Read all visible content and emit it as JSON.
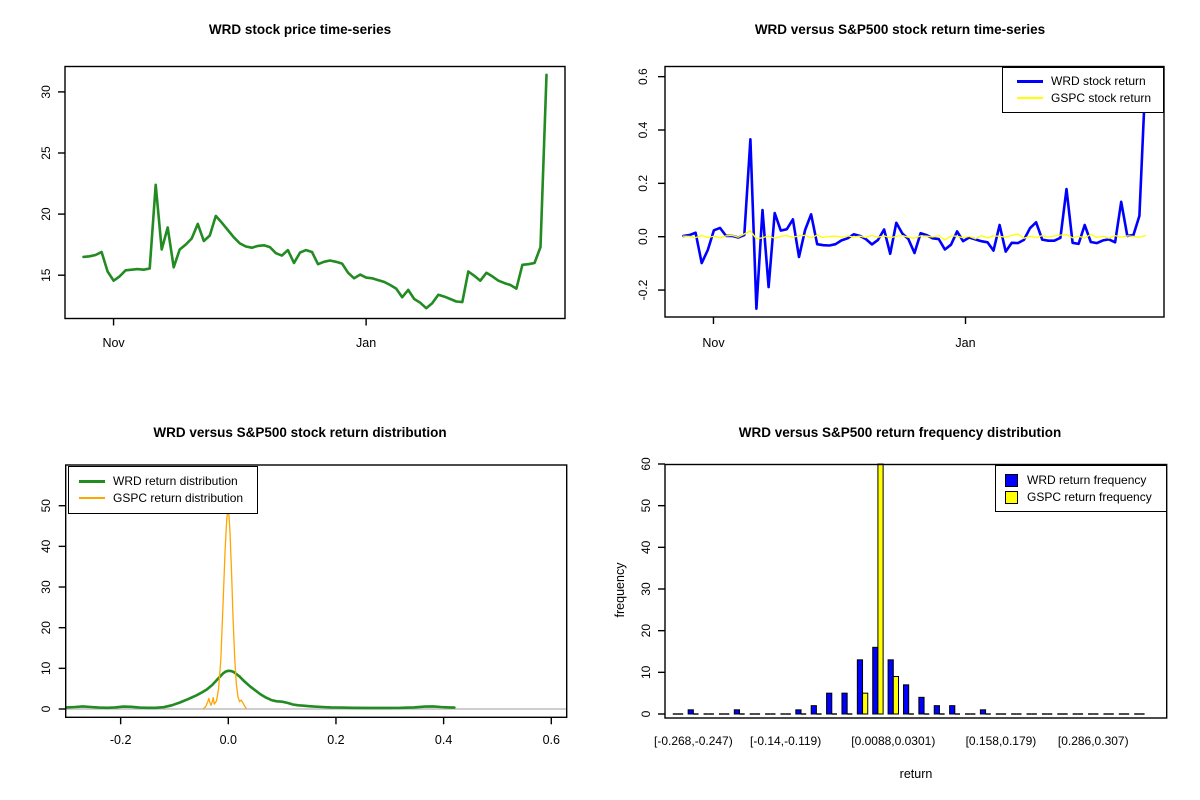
{
  "colors": {
    "wrd_green": "#228B22",
    "wrd_blue": "#0000FF",
    "gspc_yellow": "#FFFF00",
    "gspc_orange": "#FFA500",
    "axis": "#000000",
    "zero_line_gray": "#BEBEBE",
    "background": "#FFFFFF"
  },
  "panels": {
    "price": {
      "title": "WRD stock price time-series",
      "y_ticks": [
        "15",
        "20",
        "25",
        "30"
      ],
      "x_ticks": [
        "Nov",
        "Jan"
      ]
    },
    "returns": {
      "title": "WRD versus S&P500 stock return time-series",
      "y_ticks": [
        "-0.2",
        "0.0",
        "0.2",
        "0.4",
        "0.6"
      ],
      "x_ticks": [
        "Nov",
        "Jan"
      ],
      "legend": [
        "WRD stock return",
        "GSPC stock return"
      ]
    },
    "density": {
      "title": "WRD versus S&P500 stock return distribution",
      "y_ticks": [
        "0",
        "10",
        "20",
        "30",
        "40",
        "50"
      ],
      "x_ticks": [
        "-0.2",
        "0.0",
        "0.2",
        "0.4",
        "0.6"
      ],
      "legend": [
        "WRD return distribution",
        "GSPC return distribution"
      ]
    },
    "histogram": {
      "title": "WRD versus S&P500 return frequency distribution",
      "y_ticks": [
        "0",
        "10",
        "20",
        "30",
        "40",
        "50",
        "60"
      ],
      "xlabel": "return",
      "ylabel": "frequency",
      "legend": [
        "WRD return frequency",
        "GSPC return frequency"
      ],
      "bin_labels": [
        "[-0.268,-0.247)",
        "[-0.14,-0.119)",
        "[0.0088,0.0301)",
        "[0.158,0.179)",
        "[0.286,0.307)"
      ]
    }
  },
  "chart_data": [
    {
      "type": "line",
      "title": "WRD stock price time-series",
      "xlabel_ticks": [
        {
          "label": "Nov",
          "t": 0.0649
        },
        {
          "label": "Jan",
          "t": 0.6104
        }
      ],
      "ylabel_ticks": [
        15,
        20,
        25,
        30
      ],
      "ylim": [
        11.5,
        32.2
      ],
      "series": [
        {
          "name": "WRD price",
          "color": "#228B22",
          "width": 2.6,
          "values": [
            16.5,
            16.55,
            16.65,
            16.9,
            15.3,
            14.55,
            14.9,
            15.4,
            15.45,
            15.5,
            15.45,
            15.55,
            22.4,
            17.1,
            18.9,
            15.65,
            17.1,
            17.5,
            18.0,
            19.2,
            17.8,
            18.25,
            19.85,
            19.3,
            18.7,
            18.1,
            17.6,
            17.35,
            17.25,
            17.4,
            17.45,
            17.3,
            16.8,
            16.6,
            17.05,
            16.0,
            16.85,
            17.05,
            16.9,
            15.9,
            16.1,
            16.2,
            16.1,
            15.95,
            15.2,
            14.75,
            15.05,
            14.8,
            14.75,
            14.6,
            14.45,
            14.2,
            13.9,
            13.2,
            13.8,
            13.05,
            12.75,
            12.3,
            12.7,
            13.4,
            13.25,
            13.05,
            12.85,
            12.8,
            15.3,
            14.95,
            14.55,
            15.2,
            14.9,
            14.55,
            14.35,
            14.2,
            13.9,
            15.85,
            15.9,
            16.0,
            17.3,
            31.4
          ]
        }
      ]
    },
    {
      "type": "line",
      "title": "WRD versus S&P500 stock return time-series",
      "xlabel_ticks": [
        {
          "label": "Nov",
          "t": 0.0649
        },
        {
          "label": "Jan",
          "t": 0.6104
        }
      ],
      "ylabel_ticks": [
        -0.2,
        0.0,
        0.2,
        0.4,
        0.6
      ],
      "ylim": [
        -0.3,
        0.637
      ],
      "legend_position": "topright",
      "series": [
        {
          "name": "WRD stock return",
          "color": "#0000FF",
          "width": 2.6,
          "values": [
            0.003,
            0.006,
            0.015,
            -0.099,
            -0.05,
            0.024,
            0.033,
            0.003,
            0.003,
            -0.003,
            0.006,
            0.365,
            -0.27,
            0.1,
            -0.189,
            0.089,
            0.023,
            0.028,
            0.065,
            -0.076,
            0.025,
            0.084,
            -0.028,
            -0.032,
            -0.033,
            -0.028,
            -0.014,
            -0.006,
            0.009,
            0.003,
            -0.009,
            -0.029,
            -0.012,
            0.027,
            -0.064,
            0.052,
            0.012,
            -0.009,
            -0.061,
            0.013,
            0.006,
            -0.006,
            -0.009,
            -0.048,
            -0.03,
            0.02,
            -0.017,
            -0.003,
            -0.01,
            -0.017,
            -0.021,
            -0.052,
            0.044,
            -0.056,
            -0.023,
            -0.024,
            -0.012,
            0.032,
            0.054,
            -0.011,
            -0.015,
            -0.015,
            -0.004,
            0.179,
            -0.023,
            -0.027,
            0.044,
            -0.02,
            -0.024,
            -0.014,
            -0.01,
            -0.021,
            0.131,
            0.003,
            0.006,
            0.078,
            0.596
          ]
        },
        {
          "name": "GSPC stock return",
          "color": "#FFFF00",
          "width": 1.3,
          "values": [
            0.002,
            0.001,
            -0.003,
            0.004,
            -0.003,
            0.002,
            -0.004,
            0.003,
            0.005,
            -0.002,
            0.01,
            0.022,
            -0.008,
            -0.004,
            0.003,
            -0.006,
            0.002,
            0.004,
            -0.002,
            0.003,
            0.005,
            -0.004,
            0.006,
            -0.003,
            0.001,
            0.002,
            -0.002,
            0.003,
            -0.001,
            0.002,
            -0.003,
            0.005,
            -0.002,
            0.003,
            -0.004,
            0.001,
            0.004,
            -0.002,
            -0.006,
            0.003,
            0.002,
            -0.001,
            0.004,
            -0.012,
            0.003,
            0.002,
            -0.004,
            0.001,
            -0.008,
            0.004,
            -0.005,
            0.003,
            0.001,
            -0.002,
            0.005,
            0.01,
            -0.006,
            0.002,
            -0.003,
            0.004,
            -0.002,
            0.003,
            0.006,
            0.008,
            -0.004,
            0.002,
            -0.005,
            0.009,
            -0.003,
            0.002,
            -0.006,
            0.004,
            -0.002,
            0.003,
            0.001,
            -0.002,
            0.004
          ]
        }
      ]
    },
    {
      "type": "line",
      "subtype": "density",
      "title": "WRD versus S&P500 stock return distribution",
      "xlim": [
        -0.302,
        0.628
      ],
      "ylim": [
        -2,
        60
      ],
      "x_ticks": [
        -0.2,
        0.0,
        0.2,
        0.4,
        0.6
      ],
      "y_ticks": [
        0,
        10,
        20,
        30,
        40,
        50
      ],
      "zero_line": true,
      "series": [
        {
          "name": "WRD return distribution",
          "color": "#228B22",
          "width": 2.6,
          "points": [
            [
              -0.3,
              0.4
            ],
            [
              -0.285,
              0.5
            ],
            [
              -0.27,
              0.65
            ],
            [
              -0.255,
              0.5
            ],
            [
              -0.24,
              0.35
            ],
            [
              -0.225,
              0.3
            ],
            [
              -0.21,
              0.4
            ],
            [
              -0.195,
              0.6
            ],
            [
              -0.18,
              0.55
            ],
            [
              -0.165,
              0.35
            ],
            [
              -0.15,
              0.3
            ],
            [
              -0.135,
              0.3
            ],
            [
              -0.12,
              0.45
            ],
            [
              -0.105,
              0.9
            ],
            [
              -0.09,
              1.6
            ],
            [
              -0.075,
              2.4
            ],
            [
              -0.06,
              3.3
            ],
            [
              -0.05,
              4.0
            ],
            [
              -0.04,
              4.8
            ],
            [
              -0.03,
              5.9
            ],
            [
              -0.02,
              7.3
            ],
            [
              -0.01,
              8.7
            ],
            [
              -0.005,
              9.2
            ],
            [
              0.0,
              9.4
            ],
            [
              0.005,
              9.35
            ],
            [
              0.01,
              9.1
            ],
            [
              0.02,
              8.1
            ],
            [
              0.03,
              6.8
            ],
            [
              0.04,
              5.6
            ],
            [
              0.05,
              4.6
            ],
            [
              0.06,
              3.6
            ],
            [
              0.07,
              2.8
            ],
            [
              0.08,
              2.2
            ],
            [
              0.09,
              1.9
            ],
            [
              0.1,
              1.8
            ],
            [
              0.11,
              1.5
            ],
            [
              0.12,
              1.1
            ],
            [
              0.13,
              0.9
            ],
            [
              0.14,
              0.8
            ],
            [
              0.15,
              0.7
            ],
            [
              0.16,
              0.6
            ],
            [
              0.175,
              0.5
            ],
            [
              0.19,
              0.4
            ],
            [
              0.21,
              0.35
            ],
            [
              0.23,
              0.3
            ],
            [
              0.26,
              0.28
            ],
            [
              0.29,
              0.28
            ],
            [
              0.32,
              0.3
            ],
            [
              0.345,
              0.4
            ],
            [
              0.365,
              0.6
            ],
            [
              0.38,
              0.65
            ],
            [
              0.395,
              0.5
            ],
            [
              0.41,
              0.4
            ],
            [
              0.42,
              0.35
            ]
          ]
        },
        {
          "name": "GSPC return distribution",
          "color": "#FFA500",
          "width": 1.3,
          "points": [
            [
              -0.046,
              0.1
            ],
            [
              -0.042,
              0.6
            ],
            [
              -0.038,
              1.8
            ],
            [
              -0.036,
              2.6
            ],
            [
              -0.034,
              1.5
            ],
            [
              -0.032,
              0.9
            ],
            [
              -0.03,
              1.8
            ],
            [
              -0.028,
              2.8
            ],
            [
              -0.026,
              1.2
            ],
            [
              -0.022,
              2.0
            ],
            [
              -0.018,
              5.0
            ],
            [
              -0.014,
              12.0
            ],
            [
              -0.01,
              25.0
            ],
            [
              -0.006,
              39.0
            ],
            [
              -0.003,
              46.5
            ],
            [
              -0.001,
              48.8
            ],
            [
              0.001,
              48.0
            ],
            [
              0.003,
              44.0
            ],
            [
              0.006,
              34.0
            ],
            [
              0.009,
              22.0
            ],
            [
              0.012,
              12.0
            ],
            [
              0.015,
              6.0
            ],
            [
              0.018,
              3.0
            ],
            [
              0.021,
              1.8
            ],
            [
              0.024,
              2.2
            ],
            [
              0.027,
              1.6
            ],
            [
              0.03,
              0.8
            ],
            [
              0.033,
              0.2
            ]
          ]
        }
      ]
    },
    {
      "type": "bar",
      "title": "WRD versus S&P500 return frequency distribution",
      "xlabel": "return",
      "ylabel": "frequency",
      "ylim": [
        0,
        60
      ],
      "y_ticks": [
        0,
        10,
        20,
        30,
        40,
        50,
        60
      ],
      "bins": 31,
      "bin_width": 0.0213,
      "first_bin_start": -0.2893,
      "labeled_bins": [
        {
          "bin": 2,
          "text": "[-0.268,-0.247)"
        },
        {
          "bin": 8,
          "text": "[-0.14,-0.119)"
        },
        {
          "bin": 15,
          "text": "[0.0088,0.0301)"
        },
        {
          "bin": 22,
          "text": "[0.158,0.179)"
        },
        {
          "bin": 28,
          "text": "[0.286,0.307)"
        }
      ],
      "series": [
        {
          "name": "WRD return frequency",
          "color": "#0000FF",
          "values": [
            0,
            1,
            0,
            0,
            1,
            0,
            0,
            0,
            1,
            2,
            5,
            5,
            13,
            16,
            13,
            7,
            4,
            2,
            2,
            0,
            1,
            0,
            0,
            0,
            0,
            0,
            0,
            0,
            0,
            0,
            0
          ]
        },
        {
          "name": "GSPC return frequency",
          "color": "#FFFF00",
          "values": [
            0,
            0,
            0,
            0,
            0,
            0,
            0,
            0,
            0,
            0,
            0,
            0,
            5,
            71,
            9,
            0,
            0,
            0,
            0,
            0,
            0,
            0,
            0,
            0,
            0,
            0,
            0,
            0,
            0,
            0,
            0
          ]
        }
      ],
      "clip_max": 60
    }
  ]
}
